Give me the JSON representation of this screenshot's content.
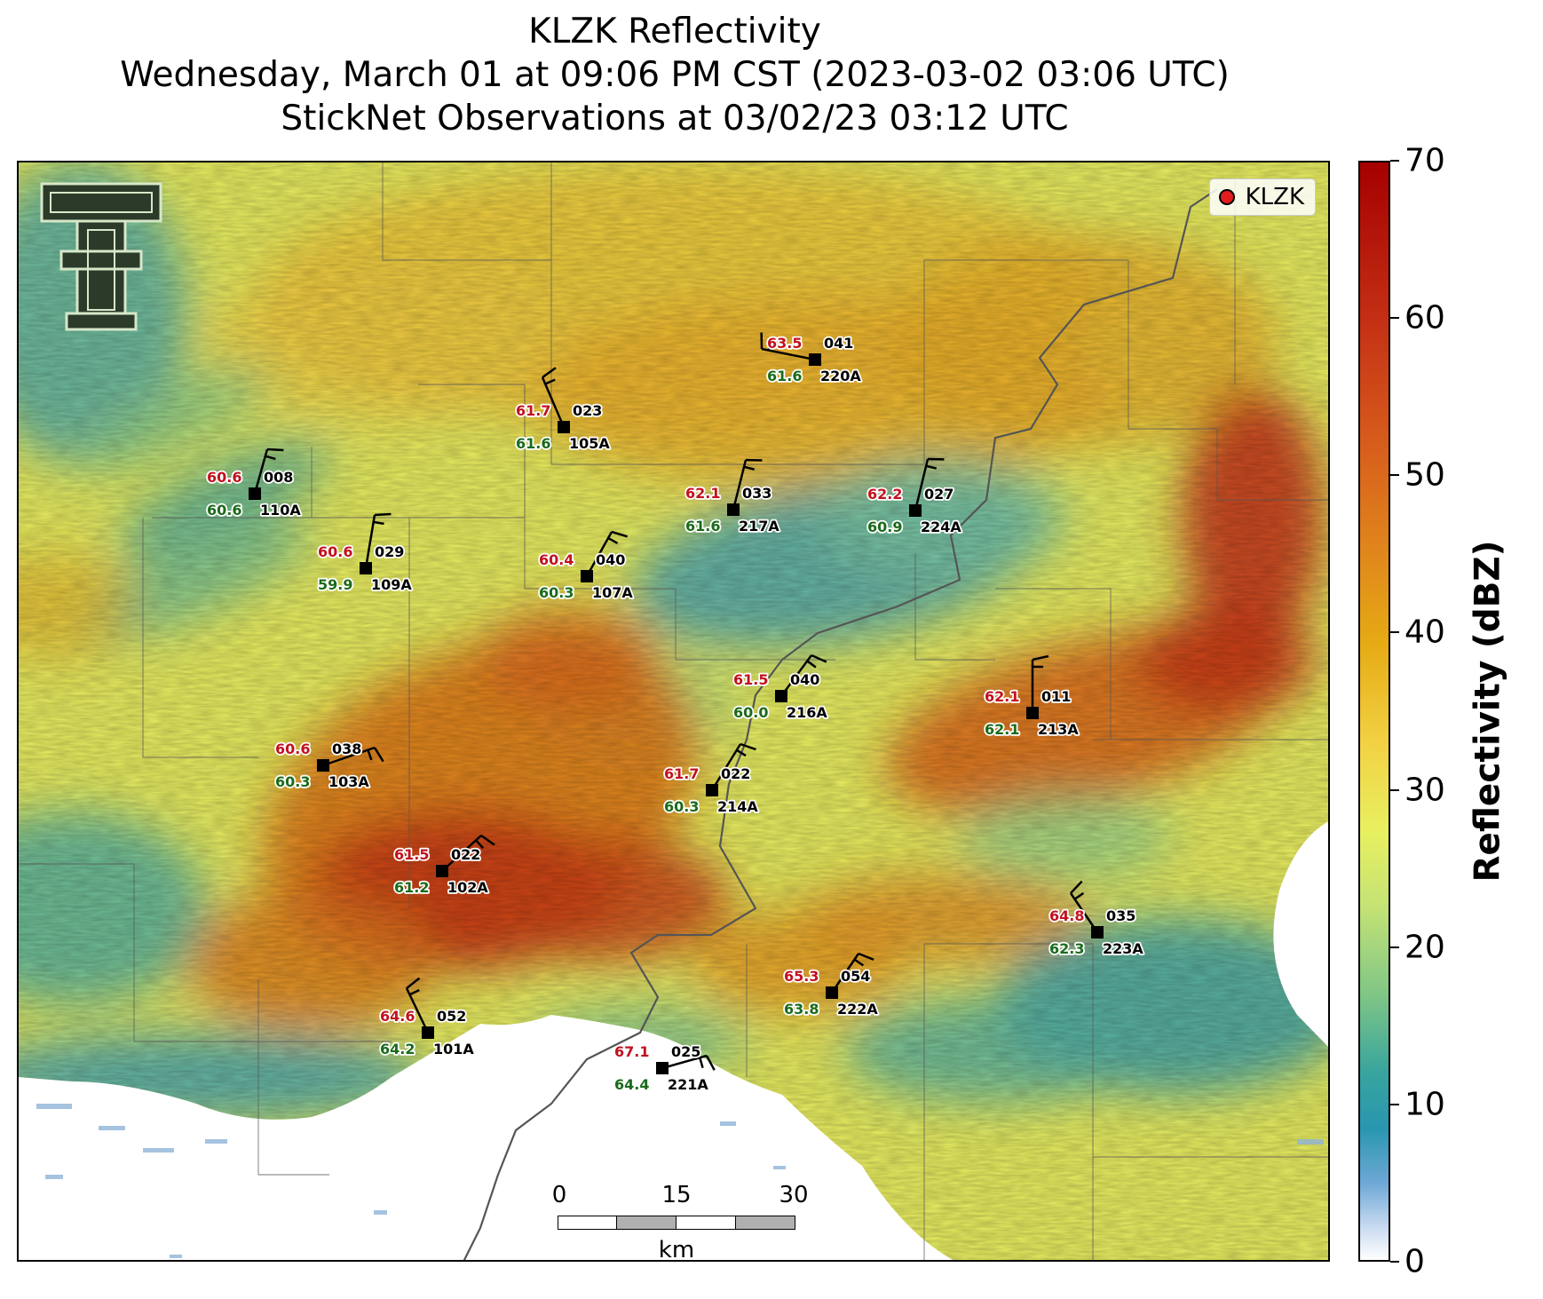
{
  "title": {
    "line1": "KLZK Reflectivity",
    "line2": "Wednesday, March 01 at 09:06 PM CST (2023-03-02 03:06 UTC)",
    "line3": "StickNet Observations at 03/02/23 03:12 UTC"
  },
  "legend": {
    "label": "KLZK"
  },
  "logo": {
    "text": "TTU double-T logo"
  },
  "scale_bar": {
    "ticks": [
      "0",
      "15",
      "30"
    ],
    "unit": "km"
  },
  "colorbar": {
    "label": "Reflectivity (dBZ)",
    "ticks": [
      "0",
      "10",
      "20",
      "30",
      "40",
      "50",
      "60",
      "70"
    ],
    "range": [
      0,
      70
    ]
  },
  "stations": [
    {
      "id": "110A",
      "temp": "60.6",
      "dew": "60.6",
      "dir": "008"
    },
    {
      "id": "105A",
      "temp": "61.7",
      "dew": "61.6",
      "dir": "023"
    },
    {
      "id": "220A",
      "temp": "63.5",
      "dew": "61.6",
      "dir": "041"
    },
    {
      "id": "109A",
      "temp": "60.6",
      "dew": "59.9",
      "dir": "029"
    },
    {
      "id": "107A",
      "temp": "60.4",
      "dew": "60.3",
      "dir": "040"
    },
    {
      "id": "217A",
      "temp": "62.1",
      "dew": "61.6",
      "dir": "033"
    },
    {
      "id": "224A",
      "temp": "62.2",
      "dew": "60.9",
      "dir": "027"
    },
    {
      "id": "216A",
      "temp": "61.5",
      "dew": "60.0",
      "dir": "040"
    },
    {
      "id": "213A",
      "temp": "62.1",
      "dew": "62.1",
      "dir": "011"
    },
    {
      "id": "103A",
      "temp": "60.6",
      "dew": "60.3",
      "dir": "038"
    },
    {
      "id": "214A",
      "temp": "61.7",
      "dew": "60.3",
      "dir": "022"
    },
    {
      "id": "102A",
      "temp": "61.5",
      "dew": "61.2",
      "dir": "022"
    },
    {
      "id": "223A",
      "temp": "64.8",
      "dew": "62.3",
      "dir": "035"
    },
    {
      "id": "222A",
      "temp": "65.3",
      "dew": "63.8",
      "dir": "054"
    },
    {
      "id": "101A",
      "temp": "64.6",
      "dew": "64.2",
      "dir": "052"
    },
    {
      "id": "221A",
      "temp": "67.1",
      "dew": "64.4",
      "dir": "025"
    }
  ],
  "colors": {
    "temp": "#c1121f",
    "dew": "#1b6b1b",
    "radar_point": "#e11d1d"
  }
}
